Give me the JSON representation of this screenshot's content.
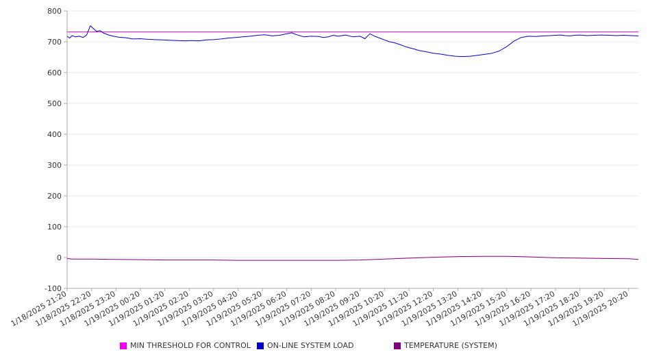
{
  "chart_data": {
    "type": "line",
    "title": "",
    "xlabel": "",
    "ylabel": "",
    "ylim": [
      -100,
      800
    ],
    "y_ticks": [
      -100,
      0,
      100,
      200,
      300,
      400,
      500,
      600,
      700,
      800
    ],
    "x_range": [
      0,
      23.4
    ],
    "x_ticks": [
      "1/18/2025 21:20",
      "1/18/2025 22:20",
      "1/18/2025 23:20",
      "1/19/2025 00:20",
      "1/19/2025 01:20",
      "1/19/2025 02:20",
      "1/19/2025 03:20",
      "1/19/2025 04:20",
      "1/19/2025 05:20",
      "1/19/2025 06:20",
      "1/19/2025 07:20",
      "1/19/2025 08:20",
      "1/19/2025 09:20",
      "1/19/2025 10:20",
      "1/19/2025 11:20",
      "1/19/2025 12:20",
      "1/19/2025 13:20",
      "1/19/2025 14:20",
      "1/19/2025 15:20",
      "1/19/2025 16:20",
      "1/19/2025 17:20",
      "1/19/2025 18:20",
      "1/19/2025 19:20",
      "1/19/2025 20:20"
    ],
    "grid": "horizontal",
    "legend_position": "bottom",
    "series": [
      {
        "name": "MIN THRESHOLD FOR CONTROL",
        "color": "#ee00ee",
        "x": [
          0,
          23.4
        ],
        "y": [
          732,
          732
        ]
      },
      {
        "name": "ON-LINE SYSTEM LOAD",
        "color": "#0000cc",
        "x": [
          0,
          0.1,
          0.2,
          0.35,
          0.5,
          0.65,
          0.8,
          0.95,
          1.05,
          1.2,
          1.35,
          1.5,
          1.7,
          1.9,
          2.1,
          2.4,
          2.7,
          3.0,
          3.3,
          3.6,
          3.9,
          4.2,
          4.5,
          4.8,
          5.1,
          5.4,
          5.7,
          6.0,
          6.3,
          6.6,
          6.9,
          7.2,
          7.5,
          7.8,
          8.1,
          8.4,
          8.7,
          9.0,
          9.2,
          9.4,
          9.7,
          10.0,
          10.3,
          10.5,
          10.7,
          10.9,
          11.1,
          11.4,
          11.7,
          12.0,
          12.2,
          12.4,
          12.6,
          12.8,
          13.0,
          13.2,
          13.4,
          13.6,
          13.8,
          14.0,
          14.2,
          14.4,
          14.6,
          14.8,
          15.0,
          15.3,
          15.6,
          15.9,
          16.2,
          16.5,
          16.8,
          17.1,
          17.4,
          17.7,
          18.0,
          18.3,
          18.6,
          18.9,
          19.2,
          19.5,
          19.8,
          20.0,
          20.2,
          20.4,
          20.6,
          20.8,
          21.0,
          21.3,
          21.6,
          21.9,
          22.2,
          22.5,
          22.8,
          23.1,
          23.4
        ],
        "y": [
          718,
          712,
          720,
          716,
          718,
          714,
          722,
          752,
          745,
          734,
          736,
          728,
          722,
          718,
          715,
          713,
          709,
          710,
          708,
          707,
          706,
          705,
          704,
          703,
          704,
          703,
          706,
          707,
          709,
          712,
          714,
          716,
          718,
          721,
          723,
          719,
          721,
          726,
          729,
          723,
          716,
          718,
          717,
          714,
          716,
          721,
          718,
          722,
          716,
          718,
          710,
          726,
          718,
          712,
          706,
          700,
          697,
          692,
          686,
          681,
          677,
          672,
          669,
          666,
          663,
          660,
          656,
          653,
          652,
          653,
          656,
          659,
          663,
          670,
          684,
          702,
          714,
          718,
          717,
          719,
          720,
          721,
          722,
          720,
          719,
          721,
          722,
          720,
          721,
          722,
          721,
          720,
          721,
          720,
          719
        ]
      },
      {
        "name": "TEMPERATURE (SYSTEM)",
        "color": "#800080",
        "x": [
          0,
          0.2,
          1.0,
          2.0,
          3.0,
          4.0,
          5.0,
          6.0,
          7.0,
          8.0,
          9.0,
          10.0,
          11.0,
          12.0,
          13.0,
          14.0,
          15.0,
          16.0,
          17.0,
          18.0,
          19.0,
          20.0,
          21.0,
          22.0,
          23.0,
          23.4
        ],
        "y": [
          -3,
          -5,
          -5,
          -6,
          -7,
          -8,
          -8,
          -8,
          -9,
          -9,
          -9,
          -9,
          -9,
          -8,
          -5,
          -2,
          1,
          3,
          4,
          4,
          2,
          -1,
          -2,
          -3,
          -4,
          -6
        ]
      }
    ]
  }
}
